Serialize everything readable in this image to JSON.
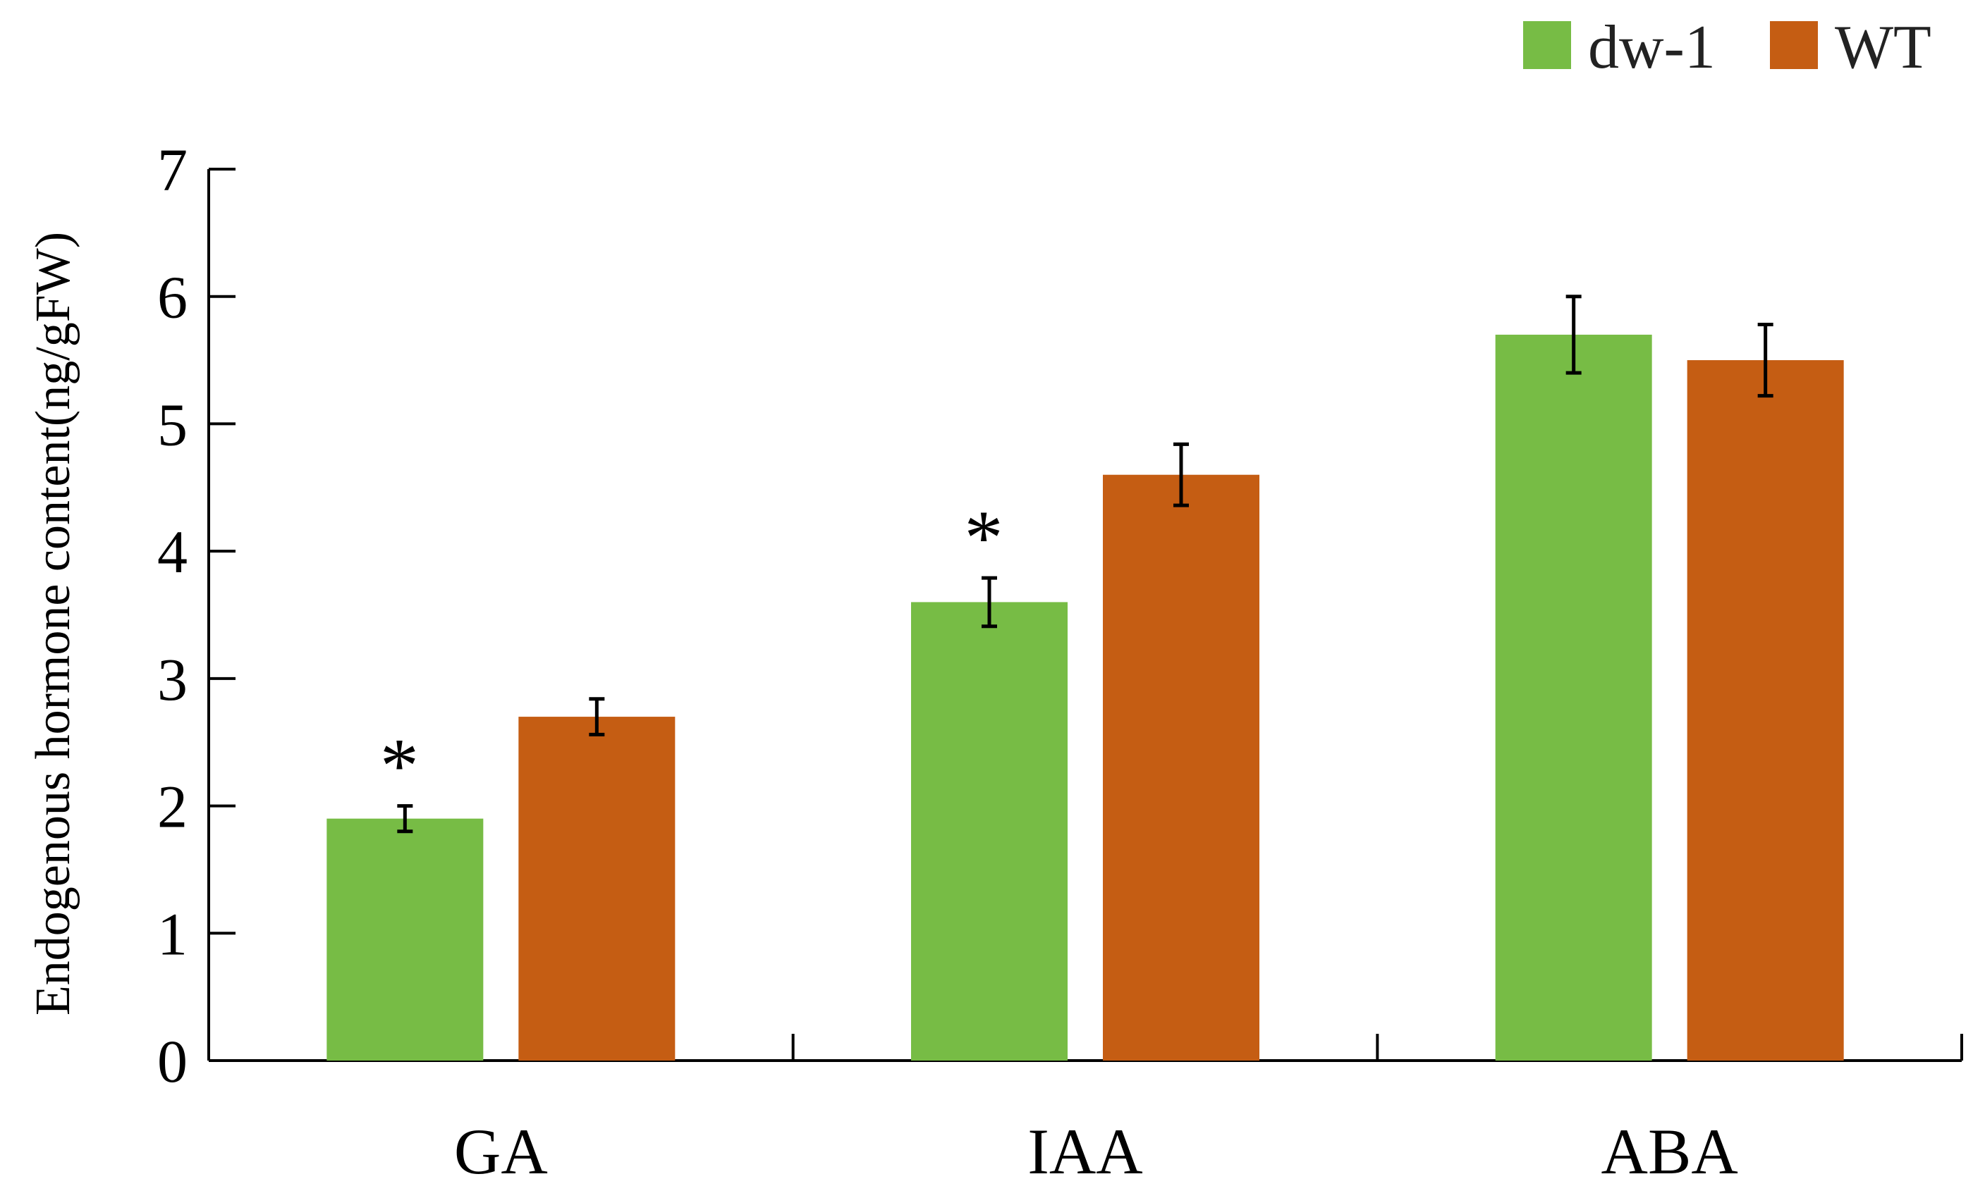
{
  "chart_data": {
    "type": "bar",
    "title": "",
    "xlabel": "",
    "ylabel": "Endogenous hormone content(ng/gFW)",
    "ylim": [
      0,
      7
    ],
    "yticks": [
      0,
      1,
      2,
      3,
      4,
      5,
      6,
      7
    ],
    "categories": [
      "GA",
      "IAA",
      "ABA"
    ],
    "grid": false,
    "legend_position": "top-right",
    "series": [
      {
        "name": "dw-1",
        "color": "#77bc45",
        "values": [
          1.9,
          3.6,
          5.7
        ],
        "errors": [
          0.1,
          0.19,
          0.3
        ],
        "significance": [
          "*",
          "*",
          ""
        ]
      },
      {
        "name": "WT",
        "color": "#c55d13",
        "values": [
          2.7,
          4.6,
          5.5
        ],
        "errors": [
          0.14,
          0.24,
          0.28
        ],
        "significance": [
          "",
          "",
          ""
        ]
      }
    ]
  }
}
